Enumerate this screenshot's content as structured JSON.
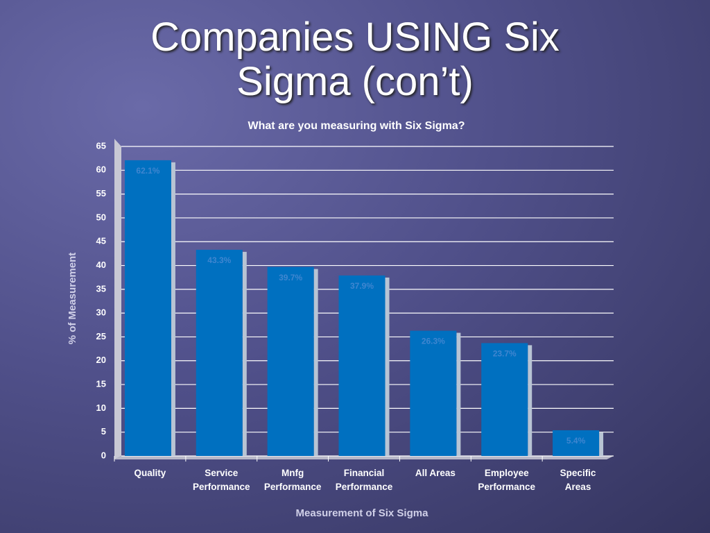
{
  "slide_title": "Companies USING Six Sigma (con’t)",
  "chart_data": {
    "type": "bar",
    "title": "What are you measuring with Six Sigma?",
    "categories": [
      "Quality",
      "Service Performance",
      "Mnfg Performance",
      "Financial Performance",
      "All Areas",
      "Employee Performance",
      "Specific Areas"
    ],
    "values": [
      62.1,
      43.3,
      39.7,
      37.9,
      26.3,
      23.7,
      5.4
    ],
    "value_labels": [
      "62.1%",
      "43.3%",
      "39.7%",
      "37.9%",
      "26.3%",
      "23.7%",
      "5.4%"
    ],
    "color": "#0070c0",
    "ylim": [
      0,
      65
    ],
    "yticks": [
      0,
      5,
      10,
      15,
      20,
      25,
      30,
      35,
      40,
      45,
      50,
      55,
      60,
      65
    ],
    "grid": true,
    "x_label": "Measurement of Six Sigma",
    "y_label": "% of Measurement"
  }
}
